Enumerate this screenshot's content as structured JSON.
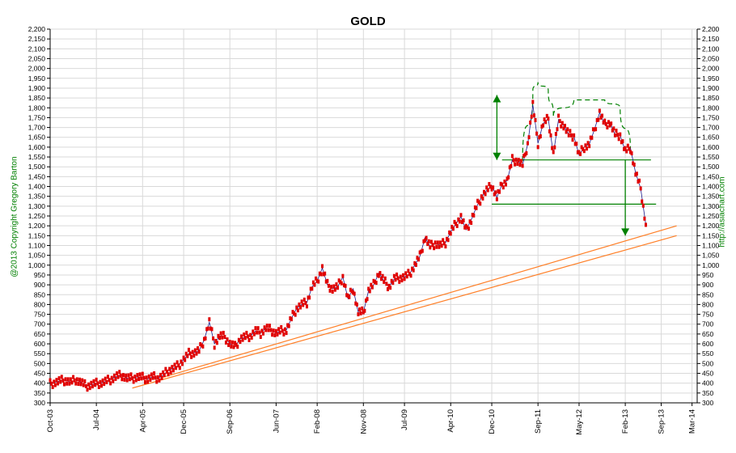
{
  "chart_data": {
    "type": "line",
    "title": "GOLD",
    "left_caption": "@2013 Copyright Gregory Barton",
    "right_caption": "http://asiachart.com",
    "ylim": [
      300,
      2200
    ],
    "ytick_step": 50,
    "yticks": [
      "300",
      "350",
      "400",
      "450",
      "500",
      "550",
      "600",
      "650",
      "700",
      "750",
      "800",
      "850",
      "900",
      "950",
      "1,000",
      "1,050",
      "1,100",
      "1,150",
      "1,200",
      "1,250",
      "1,300",
      "1,350",
      "1,400",
      "1,450",
      "1,500",
      "1,550",
      "1,600",
      "1,650",
      "1,700",
      "1,750",
      "1,800",
      "1,850",
      "1,900",
      "1,950",
      "2,000",
      "2,050",
      "2,100",
      "2,150",
      "2,200"
    ],
    "xlim": [
      "Oct-03",
      "Apr-14"
    ],
    "xticks": [
      "Oct-03",
      "Jul-04",
      "Apr-05",
      "Dec-05",
      "Sep-06",
      "Jun-07",
      "Feb-08",
      "Nov-08",
      "Jul-09",
      "Apr-10",
      "Dec-10",
      "Sep-11",
      "May-12",
      "Feb-13",
      "Sep-13",
      "Mar-14"
    ],
    "grid": true,
    "series": [
      {
        "color": "#e00000",
        "points": [
          [
            "2003-10",
            395
          ],
          [
            "2003-11",
            405
          ],
          [
            "2003-12",
            412
          ],
          [
            "2004-01",
            415
          ],
          [
            "2004-02",
            405
          ],
          [
            "2004-03",
            418
          ],
          [
            "2004-04",
            405
          ],
          [
            "2004-05",
            385
          ],
          [
            "2004-06",
            392
          ],
          [
            "2004-07",
            398
          ],
          [
            "2004-08",
            402
          ],
          [
            "2004-09",
            410
          ],
          [
            "2004-10",
            422
          ],
          [
            "2004-11",
            435
          ],
          [
            "2004-12",
            440
          ],
          [
            "2005-01",
            425
          ],
          [
            "2005-02",
            425
          ],
          [
            "2005-03",
            432
          ],
          [
            "2005-04",
            428
          ],
          [
            "2005-05",
            422
          ],
          [
            "2005-06",
            432
          ],
          [
            "2005-07",
            425
          ],
          [
            "2005-08",
            440
          ],
          [
            "2005-09",
            465
          ],
          [
            "2005-10",
            475
          ],
          [
            "2005-11",
            490
          ],
          [
            "2005-12",
            520
          ],
          [
            "2006-01",
            550
          ],
          [
            "2006-02",
            555
          ],
          [
            "2006-03",
            565
          ],
          [
            "2006-04",
            620
          ],
          [
            "2006-05",
            710
          ],
          [
            "2006-06",
            600
          ],
          [
            "2006-07",
            640
          ],
          [
            "2006-08",
            635
          ],
          [
            "2006-09",
            600
          ],
          [
            "2006-10",
            585
          ],
          [
            "2006-11",
            625
          ],
          [
            "2006-12",
            635
          ],
          [
            "2007-01",
            640
          ],
          [
            "2007-02",
            665
          ],
          [
            "2007-03",
            655
          ],
          [
            "2007-04",
            680
          ],
          [
            "2007-05",
            670
          ],
          [
            "2007-06",
            655
          ],
          [
            "2007-07",
            665
          ],
          [
            "2007-08",
            670
          ],
          [
            "2007-09",
            730
          ],
          [
            "2007-10",
            780
          ],
          [
            "2007-11",
            800
          ],
          [
            "2007-12",
            810
          ],
          [
            "2008-01",
            890
          ],
          [
            "2008-02",
            920
          ],
          [
            "2008-03",
            985
          ],
          [
            "2008-04",
            900
          ],
          [
            "2008-05",
            880
          ],
          [
            "2008-06",
            890
          ],
          [
            "2008-07",
            940
          ],
          [
            "2008-08",
            830
          ],
          [
            "2008-09",
            880
          ],
          [
            "2008-10",
            760
          ],
          [
            "2008-11",
            760
          ],
          [
            "2008-12",
            870
          ],
          [
            "2009-01",
            900
          ],
          [
            "2009-02",
            960
          ],
          [
            "2009-03",
            920
          ],
          [
            "2009-04",
            890
          ],
          [
            "2009-05",
            930
          ],
          [
            "2009-06",
            935
          ],
          [
            "2009-07",
            940
          ],
          [
            "2009-08",
            955
          ],
          [
            "2009-09",
            1000
          ],
          [
            "2009-10",
            1045
          ],
          [
            "2009-11",
            1140
          ],
          [
            "2009-12",
            1095
          ],
          [
            "2010-01",
            1110
          ],
          [
            "2010-02",
            1100
          ],
          [
            "2010-03",
            1115
          ],
          [
            "2010-04",
            1170
          ],
          [
            "2010-05",
            1210
          ],
          [
            "2010-06",
            1245
          ],
          [
            "2010-07",
            1180
          ],
          [
            "2010-08",
            1230
          ],
          [
            "2010-09",
            1295
          ],
          [
            "2010-10",
            1345
          ],
          [
            "2010-11",
            1380
          ],
          [
            "2010-12",
            1405
          ],
          [
            "2011-01",
            1345
          ],
          [
            "2011-02",
            1410
          ],
          [
            "2011-03",
            1430
          ],
          [
            "2011-04",
            1535
          ],
          [
            "2011-05",
            1530
          ],
          [
            "2011-06",
            1510
          ],
          [
            "2011-07",
            1615
          ],
          [
            "2011-08",
            1815
          ],
          [
            "2011-09",
            1620
          ],
          [
            "2011-10",
            1720
          ],
          [
            "2011-11",
            1745
          ],
          [
            "2011-12",
            1565
          ],
          [
            "2012-01",
            1740
          ],
          [
            "2012-02",
            1710
          ],
          [
            "2012-03",
            1665
          ],
          [
            "2012-04",
            1655
          ],
          [
            "2012-05",
            1560
          ],
          [
            "2012-06",
            1600
          ],
          [
            "2012-07",
            1615
          ],
          [
            "2012-08",
            1690
          ],
          [
            "2012-09",
            1775
          ],
          [
            "2012-10",
            1715
          ],
          [
            "2012-11",
            1725
          ],
          [
            "2012-12",
            1665
          ],
          [
            "2013-01",
            1660
          ],
          [
            "2013-02",
            1580
          ],
          [
            "2013-03",
            1595
          ],
          [
            "2013-04",
            1470
          ],
          [
            "2013-05",
            1390
          ],
          [
            "2013-06",
            1205
          ]
        ]
      }
    ],
    "trendlines": [
      {
        "color": "#ff7f27",
        "from": [
          "2005-02",
          375
        ],
        "to": [
          "2013-12",
          1150
        ]
      },
      {
        "color": "#ff7f27",
        "from": [
          "2005-08",
          430
        ],
        "to": [
          "2013-12",
          1200
        ]
      }
    ],
    "levels": [
      {
        "color": "#008000",
        "value": 1535,
        "from": "2011-02",
        "to": "2013-07"
      },
      {
        "color": "#008000",
        "value": 1310,
        "from": "2010-12",
        "to": "2013-08"
      }
    ],
    "arrows": [
      {
        "color": "#008000",
        "date": "2011-01",
        "from": 1535,
        "to": 1865,
        "double": true
      },
      {
        "color": "#008000",
        "date": "2013-02",
        "from": 1535,
        "to": 1150,
        "double": false
      }
    ],
    "arcs": [
      {
        "color": "#008000",
        "dashed": true,
        "points": [
          [
            "2011-06",
            1530
          ],
          [
            "2011-08",
            1890
          ],
          [
            "2011-09",
            1930
          ],
          [
            "2011-11",
            1890
          ],
          [
            "2011-12",
            1760
          ]
        ]
      },
      {
        "color": "#008000",
        "dashed": true,
        "points": [
          [
            "2011-12",
            1760
          ],
          [
            "2012-04",
            1840
          ],
          [
            "2012-10",
            1840
          ],
          [
            "2013-01",
            1800
          ],
          [
            "2013-03",
            1590
          ]
        ]
      }
    ]
  }
}
